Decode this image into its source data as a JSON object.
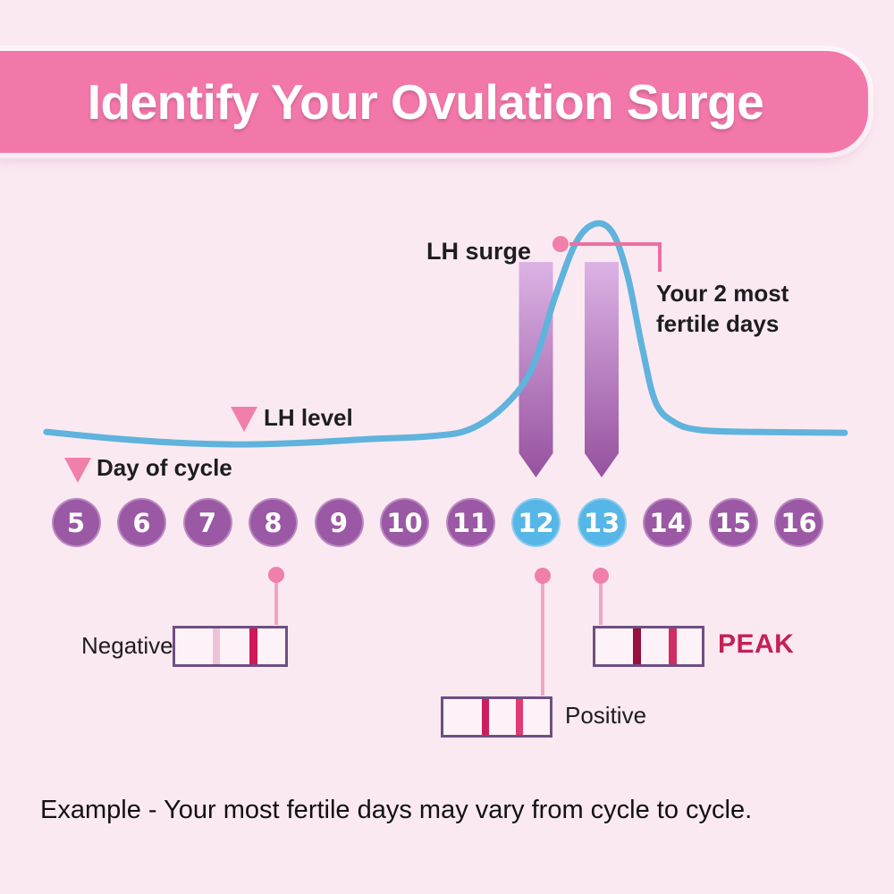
{
  "header": {
    "title": "Identify Your Ovulation Surge",
    "banner_color": "#f378aa",
    "text_color": "#ffffff"
  },
  "labels": {
    "lh_surge": "LH surge",
    "lh_level": "LH level",
    "day_of_cycle": "Day of cycle",
    "fertile_line1": "Your 2 most",
    "fertile_line2": "fertile days"
  },
  "colors": {
    "background": "#fbe9f2",
    "curve": "#5fb3dc",
    "day_default": "#9b58a4",
    "day_fertile": "#56b6e7",
    "arrow_top": "#dcb3e5",
    "arrow_bottom": "#96519f",
    "connector_elbow": "#ed6f9f",
    "connector_line": "#efa6c2",
    "connector_dot": "#f07fa9",
    "strip_border": "#6e4f82"
  },
  "chart_data": {
    "type": "line",
    "title": "LH level across cycle days",
    "xlabel": "Day of cycle",
    "ylabel": "LH level",
    "days": [
      5,
      6,
      7,
      8,
      9,
      10,
      11,
      12,
      13,
      14,
      15,
      16
    ],
    "fertile_days": [
      12,
      13
    ],
    "peak_day": 12.9,
    "ylim": [
      0,
      100
    ],
    "grid": false,
    "legend": "none",
    "curve_points": [
      [
        4.55,
        8.6
      ],
      [
        5.5,
        5.9
      ],
      [
        6.5,
        3.9
      ],
      [
        7.5,
        3.1
      ],
      [
        8.5,
        3.9
      ],
      [
        9.5,
        5.5
      ],
      [
        10.4,
        6.7
      ],
      [
        11.0,
        9.8
      ],
      [
        11.55,
        20.8
      ],
      [
        11.95,
        37.3
      ],
      [
        12.3,
        68.6
      ],
      [
        12.62,
        92.2
      ],
      [
        12.92,
        100
      ],
      [
        13.18,
        95.3
      ],
      [
        13.4,
        76.5
      ],
      [
        13.62,
        45.1
      ],
      [
        13.82,
        21.6
      ],
      [
        14.1,
        12.9
      ],
      [
        14.5,
        9.4
      ],
      [
        15.3,
        8.6
      ],
      [
        16.7,
        8.2
      ]
    ]
  },
  "strips": [
    {
      "label": "Negative",
      "day": 8,
      "lines": [
        "#ecc3d6",
        "#d2175a"
      ]
    },
    {
      "label": "Positive",
      "day": 12,
      "lines": [
        "#cc1d5c",
        "#e23a72"
      ]
    },
    {
      "label": "PEAK",
      "day": 13,
      "lines": [
        "#97103f",
        "#d12d62"
      ],
      "label_color": "#c32058"
    }
  ],
  "footer": {
    "text": "Example - Your most fertile days may vary from cycle to cycle."
  }
}
